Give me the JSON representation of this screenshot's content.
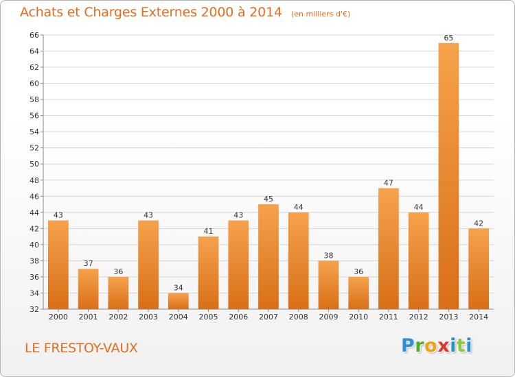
{
  "header": {
    "title": "Achats et Charges Externes 2000 à 2014",
    "unit": "(en milliers d'€)"
  },
  "footer": {
    "place": "LE FRESTOY-VAUX",
    "brand": "Proxiti"
  },
  "colors": {
    "accent": "#e46c1e",
    "bar_light": "#f6a24c",
    "bar_dark": "#d86f18",
    "grid": "#d4d4d4"
  },
  "chart_data": {
    "type": "bar",
    "title": "Achats et Charges Externes 2000 à 2014",
    "subtitle": "(en milliers d'€)",
    "xlabel": "",
    "ylabel": "",
    "categories": [
      "2000",
      "2001",
      "2002",
      "2003",
      "2004",
      "2005",
      "2006",
      "2007",
      "2008",
      "2009",
      "2010",
      "2011",
      "2012",
      "2013",
      "2014"
    ],
    "values": [
      43,
      37,
      36,
      43,
      34,
      41,
      43,
      45,
      44,
      38,
      36,
      47,
      44,
      65,
      42
    ],
    "ylim": [
      32,
      66
    ],
    "yticks": [
      32,
      34,
      36,
      38,
      40,
      42,
      44,
      46,
      48,
      50,
      52,
      54,
      56,
      58,
      60,
      62,
      64,
      66
    ],
    "grid": true,
    "data_labels": true
  }
}
